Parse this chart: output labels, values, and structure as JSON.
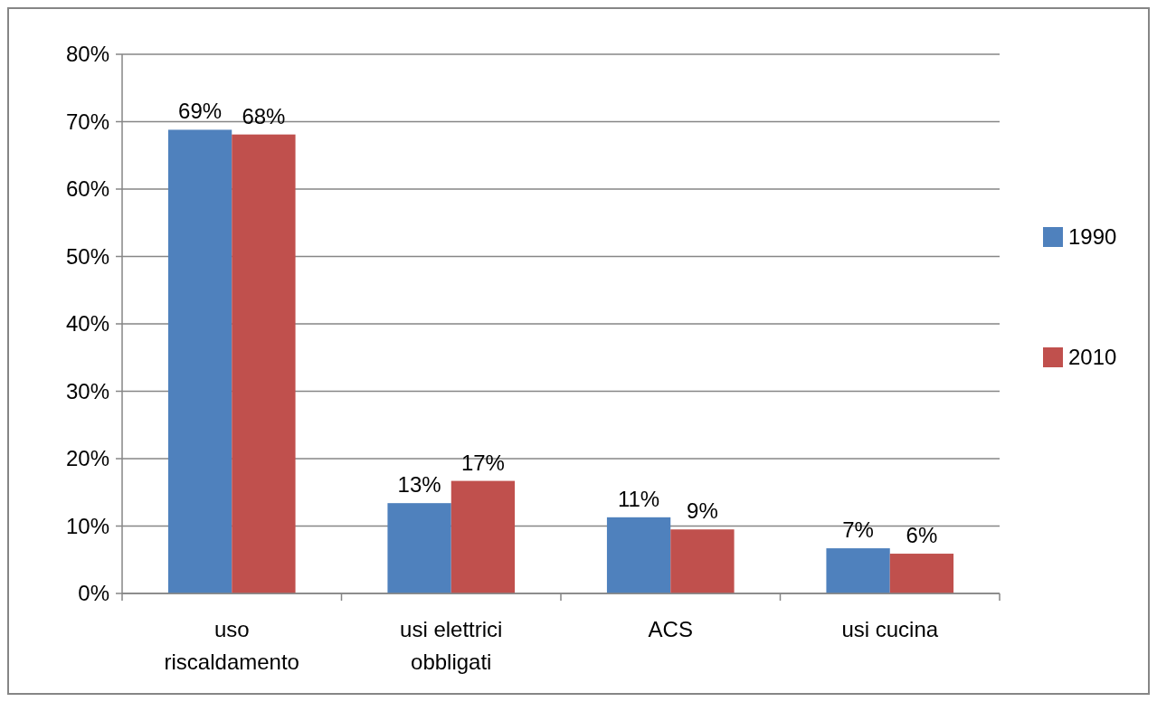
{
  "chart_data": {
    "type": "bar",
    "categories": [
      "uso riscaldamento",
      "usi elettrici obbligati",
      "ACS",
      "usi cucina"
    ],
    "series": [
      {
        "name": "1990",
        "color": "#4f81bd",
        "values": [
          68.8,
          13.4,
          11.3,
          6.7
        ],
        "value_labels": [
          "69%",
          "13%",
          "11%",
          "7%"
        ]
      },
      {
        "name": "2010",
        "color": "#c0504d",
        "values": [
          68.1,
          16.7,
          9.5,
          5.9
        ],
        "value_labels": [
          "68%",
          "17%",
          "9%",
          "6%"
        ]
      }
    ],
    "ylim": [
      0,
      80
    ],
    "yticks": [
      {
        "value": 0,
        "label": "0%"
      },
      {
        "value": 10,
        "label": "10%"
      },
      {
        "value": 20,
        "label": "20%"
      },
      {
        "value": 30,
        "label": "30%"
      },
      {
        "value": 40,
        "label": "40%"
      },
      {
        "value": 50,
        "label": "50%"
      },
      {
        "value": 60,
        "label": "60%"
      },
      {
        "value": 70,
        "label": "70%"
      },
      {
        "value": 80,
        "label": "80%"
      }
    ],
    "grid": "y",
    "legend": "right"
  }
}
